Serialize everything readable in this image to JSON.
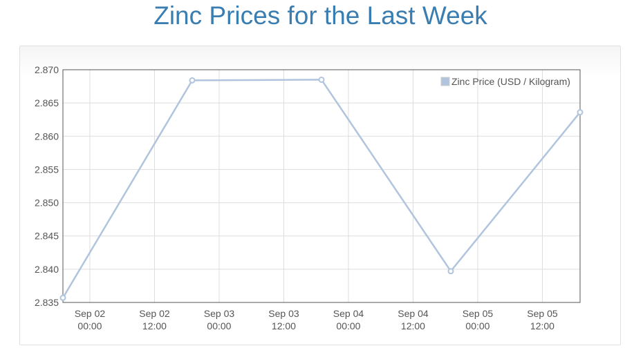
{
  "page": {
    "title": "Zinc Prices for the Last Week"
  },
  "chart_data": {
    "type": "line",
    "title": "Zinc Prices for the Last Week",
    "xlabel": "",
    "ylabel": "",
    "ylim": [
      2.835,
      2.87
    ],
    "y_ticks": [
      "2.835",
      "2.840",
      "2.845",
      "2.850",
      "2.855",
      "2.860",
      "2.865",
      "2.870"
    ],
    "xlim": [
      "2023-09-01T19:00",
      "2023-09-05T19:00"
    ],
    "x_ticks": [
      {
        "t": "2023-09-02T00:00",
        "line1": "Sep 02",
        "line2": "00:00"
      },
      {
        "t": "2023-09-02T12:00",
        "line1": "Sep 02",
        "line2": "12:00"
      },
      {
        "t": "2023-09-03T00:00",
        "line1": "Sep 03",
        "line2": "00:00"
      },
      {
        "t": "2023-09-03T12:00",
        "line1": "Sep 03",
        "line2": "12:00"
      },
      {
        "t": "2023-09-04T00:00",
        "line1": "Sep 04",
        "line2": "00:00"
      },
      {
        "t": "2023-09-04T12:00",
        "line1": "Sep 04",
        "line2": "12:00"
      },
      {
        "t": "2023-09-05T00:00",
        "line1": "Sep 05",
        "line2": "00:00"
      },
      {
        "t": "2023-09-05T12:00",
        "line1": "Sep 05",
        "line2": "12:00"
      }
    ],
    "grid": true,
    "legend_position": "top-right",
    "series": [
      {
        "name": "Zinc Price (USD / Kilogram)",
        "color": "#b0c4de",
        "points": [
          {
            "t": "2023-09-01T19:00",
            "y": 2.8357
          },
          {
            "t": "2023-09-02T19:00",
            "y": 2.8684
          },
          {
            "t": "2023-09-03T19:00",
            "y": 2.8685
          },
          {
            "t": "2023-09-04T19:00",
            "y": 2.8397
          },
          {
            "t": "2023-09-05T19:00",
            "y": 2.8636
          }
        ]
      }
    ]
  }
}
